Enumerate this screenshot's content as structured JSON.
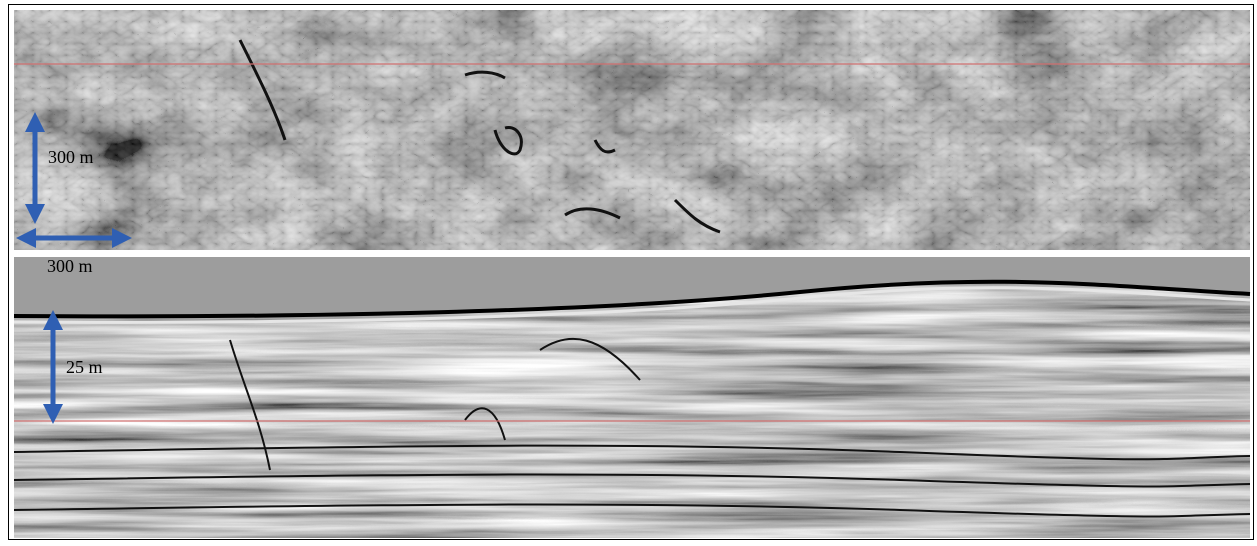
{
  "scale_labels": {
    "plan_view_vertical": "300 m",
    "plan_view_horizontal": "300 m",
    "section_vertical": "25 m"
  }
}
